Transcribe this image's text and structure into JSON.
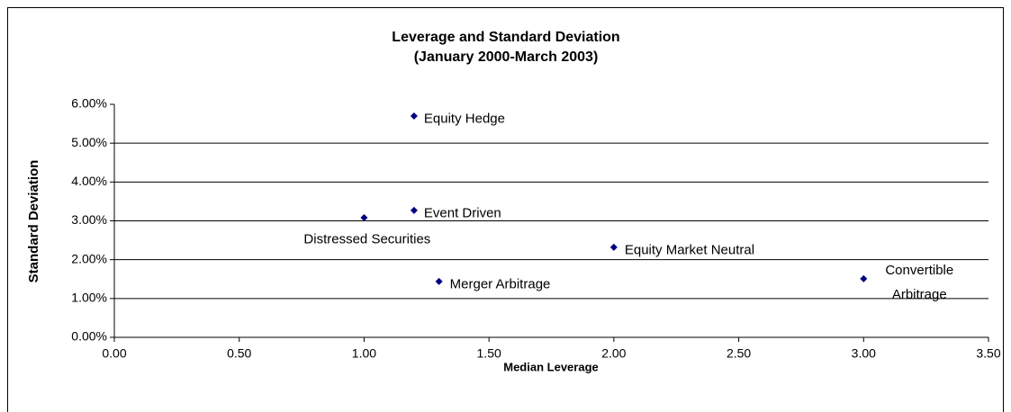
{
  "chart_data": {
    "type": "scatter",
    "title": "Leverage and Standard Deviation",
    "subtitle": "(January 2000-March 2003)",
    "x_label": "Median Leverage",
    "y_label": "Standard Deviation",
    "labels": [
      "Equity Hedge",
      "Event Driven",
      "Distressed Securities",
      "Equity Market Neutral",
      "Merger Arbitrage",
      "Convertible Arbitrage"
    ],
    "x": [
      1.2,
      1.2,
      1.0,
      2.0,
      1.3,
      3.0
    ],
    "values": [
      5.7,
      3.27,
      3.08,
      2.32,
      1.44,
      1.51
    ],
    "color": "#000080",
    "xlim": [
      0,
      3.5
    ],
    "ylim": [
      0,
      6
    ],
    "xticks": [
      {
        "value": 0,
        "label": "0.00"
      },
      {
        "value": 0.5,
        "label": "0.50"
      },
      {
        "value": 1,
        "label": "1.00"
      },
      {
        "value": 1.5,
        "label": "1.50"
      },
      {
        "value": 2,
        "label": "2.00"
      },
      {
        "value": 2.5,
        "label": "2.50"
      },
      {
        "value": 3,
        "label": "3.00"
      },
      {
        "value": 3.5,
        "label": "3.50"
      }
    ],
    "yticks": [
      {
        "value": 0,
        "label": "0.00%"
      },
      {
        "value": 1,
        "label": "1.00%"
      },
      {
        "value": 2,
        "label": "2.00%"
      },
      {
        "value": 3,
        "label": "3.00%"
      },
      {
        "value": 4,
        "label": "4.00%"
      },
      {
        "value": 5,
        "label": "5.00%"
      },
      {
        "value": 6,
        "label": "6.00%"
      }
    ],
    "grid": true
  }
}
